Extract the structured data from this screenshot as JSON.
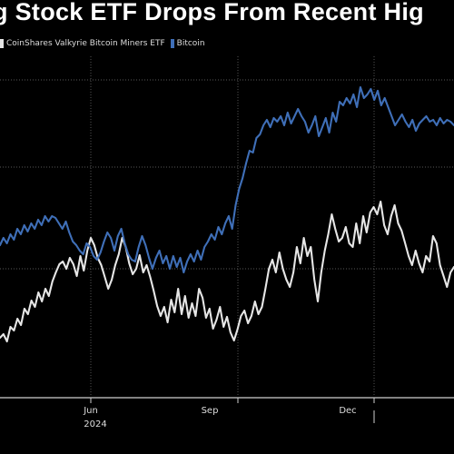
{
  "chart_data": {
    "type": "line",
    "title": "g Stock ETF Drops From Recent Hig",
    "x_ticks": [
      "Jun",
      "Sep",
      "Dec"
    ],
    "year_label": "2024",
    "grid": true,
    "legend_position": "top-left",
    "series": [
      {
        "name": "CoinShares Valkyrie Bitcoin Miners ETF",
        "color": "#e6e6e6",
        "values": [
          372,
          368,
          376,
          360,
          364,
          351,
          358,
          340,
          346,
          331,
          338,
          322,
          332,
          318,
          326,
          310,
          300,
          291,
          288,
          296,
          284,
          291,
          304,
          282,
          298,
          276,
          262,
          270,
          284,
          292,
          305,
          318,
          308,
          292,
          280,
          262,
          272,
          290,
          302,
          296,
          281,
          300,
          292,
          305,
          320,
          337,
          348,
          338,
          355,
          330,
          344,
          318,
          346,
          326,
          350,
          334,
          348,
          318,
          328,
          350,
          340,
          362,
          352,
          338,
          360,
          349,
          366,
          375,
          363,
          348,
          342,
          356,
          348,
          332,
          346,
          338,
          318,
          296,
          286,
          300,
          278,
          296,
          308,
          316,
          300,
          272,
          290,
          262,
          282,
          272,
          308,
          332,
          300,
          276,
          258,
          236,
          252,
          266,
          262,
          250,
          268,
          272,
          246,
          268,
          238,
          256,
          234,
          228,
          236,
          222,
          248,
          258,
          238,
          226,
          246,
          254,
          268,
          282,
          292,
          276,
          290,
          300,
          282,
          288,
          260,
          268,
          292,
          304,
          316,
          300,
          294
        ]
      },
      {
        "name": "Bitcoin",
        "color": "#3f6fb8",
        "values": [
          270,
          262,
          268,
          258,
          264,
          252,
          258,
          248,
          255,
          246,
          252,
          242,
          248,
          238,
          244,
          238,
          240,
          246,
          252,
          244,
          256,
          266,
          270,
          276,
          280,
          268,
          272,
          282,
          286,
          278,
          266,
          256,
          262,
          276,
          260,
          252,
          268,
          280,
          286,
          288,
          272,
          260,
          270,
          284,
          296,
          284,
          276,
          290,
          282,
          296,
          282,
          294,
          284,
          300,
          288,
          280,
          288,
          276,
          286,
          272,
          266,
          258,
          264,
          250,
          258,
          246,
          238,
          252,
          226,
          208,
          196,
          180,
          166,
          168,
          152,
          148,
          138,
          132,
          140,
          130,
          134,
          128,
          138,
          124,
          136,
          128,
          120,
          128,
          134,
          146,
          138,
          128,
          150,
          140,
          130,
          146,
          124,
          134,
          112,
          116,
          108,
          114,
          104,
          118,
          96,
          108,
          104,
          98,
          110,
          100,
          116,
          108,
          118,
          128,
          138,
          132,
          126,
          134,
          140,
          132,
          144,
          136,
          132,
          128,
          134,
          132,
          138,
          130,
          136,
          132,
          134,
          138
        ]
      }
    ]
  }
}
